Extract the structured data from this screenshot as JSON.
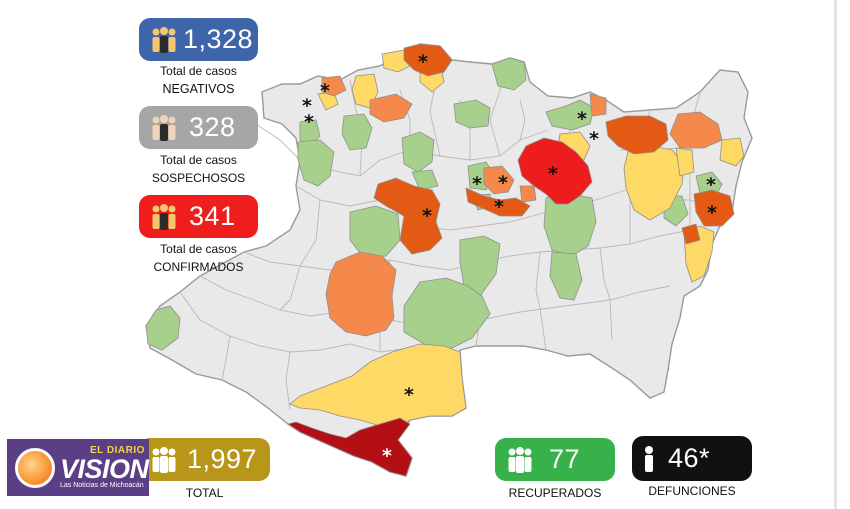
{
  "stats": {
    "negativos": {
      "value": "1,328",
      "caption1": "Total de casos",
      "caption2": "NEGATIVOS",
      "color": "#3e65aa"
    },
    "sospechosos": {
      "value": "328",
      "caption1": "Total de casos",
      "caption2": "SOSPECHOSOS",
      "color": "#a6a6a6"
    },
    "confirmados": {
      "value": "341",
      "caption1": "Total de casos",
      "caption2": "CONFIRMADOS",
      "color": "#f01d1d"
    },
    "total": {
      "value": "1,997",
      "caption": "TOTAL",
      "color": "#b8961a"
    },
    "recuperados": {
      "value": "77",
      "caption": "RECUPERADOS",
      "color": "#37b24a"
    },
    "defunciones": {
      "value": "46*",
      "caption": "DEFUNCIONES",
      "color": "#111111"
    }
  },
  "map": {
    "colors": {
      "none": "#e9e9e9",
      "green": "#a8d08d",
      "yellow": "#ffd966",
      "orange": "#f4894b",
      "darkorange": "#e35a15",
      "red": "#ee1c1c",
      "darkred": "#b50f16",
      "border": "#9a9a9a"
    },
    "marker": "*"
  },
  "logo": {
    "top": "EL DIARIO",
    "main": "VISION",
    "sub": "Las Noticias de Michoacán"
  }
}
